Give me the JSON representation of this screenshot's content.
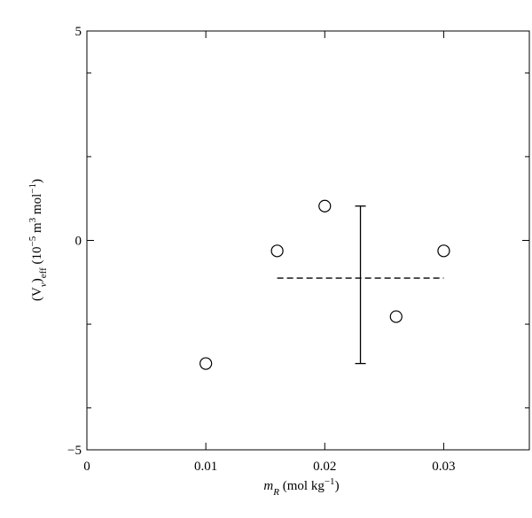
{
  "chart_data": {
    "type": "scatter",
    "x": [
      0.01,
      0.016,
      0.02,
      0.026,
      0.03
    ],
    "values": [
      -2.94,
      -0.25,
      0.82,
      -1.82,
      -0.25
    ],
    "xlim": [
      0,
      0.0372
    ],
    "ylim": [
      -5,
      5
    ],
    "xticks": [
      0,
      0.01,
      0.02,
      0.03
    ],
    "yticks": [
      {
        "value": -5,
        "label": "−5"
      },
      0,
      5
    ],
    "y_minor_ticks": [
      -4,
      -2,
      2,
      4
    ],
    "mean_line": {
      "y": -0.9,
      "x": [
        0.016,
        0.03
      ]
    },
    "error_bar": {
      "x": 0.023,
      "low": -2.94,
      "high": 0.82
    },
    "xlabel": [
      "m",
      "R",
      " (mol kg",
      "−1",
      ")"
    ],
    "ylabel": [
      "(V",
      "v",
      ")",
      "eff",
      " (10",
      "−5",
      " m",
      "3",
      " mol",
      "−1",
      ")"
    ]
  }
}
